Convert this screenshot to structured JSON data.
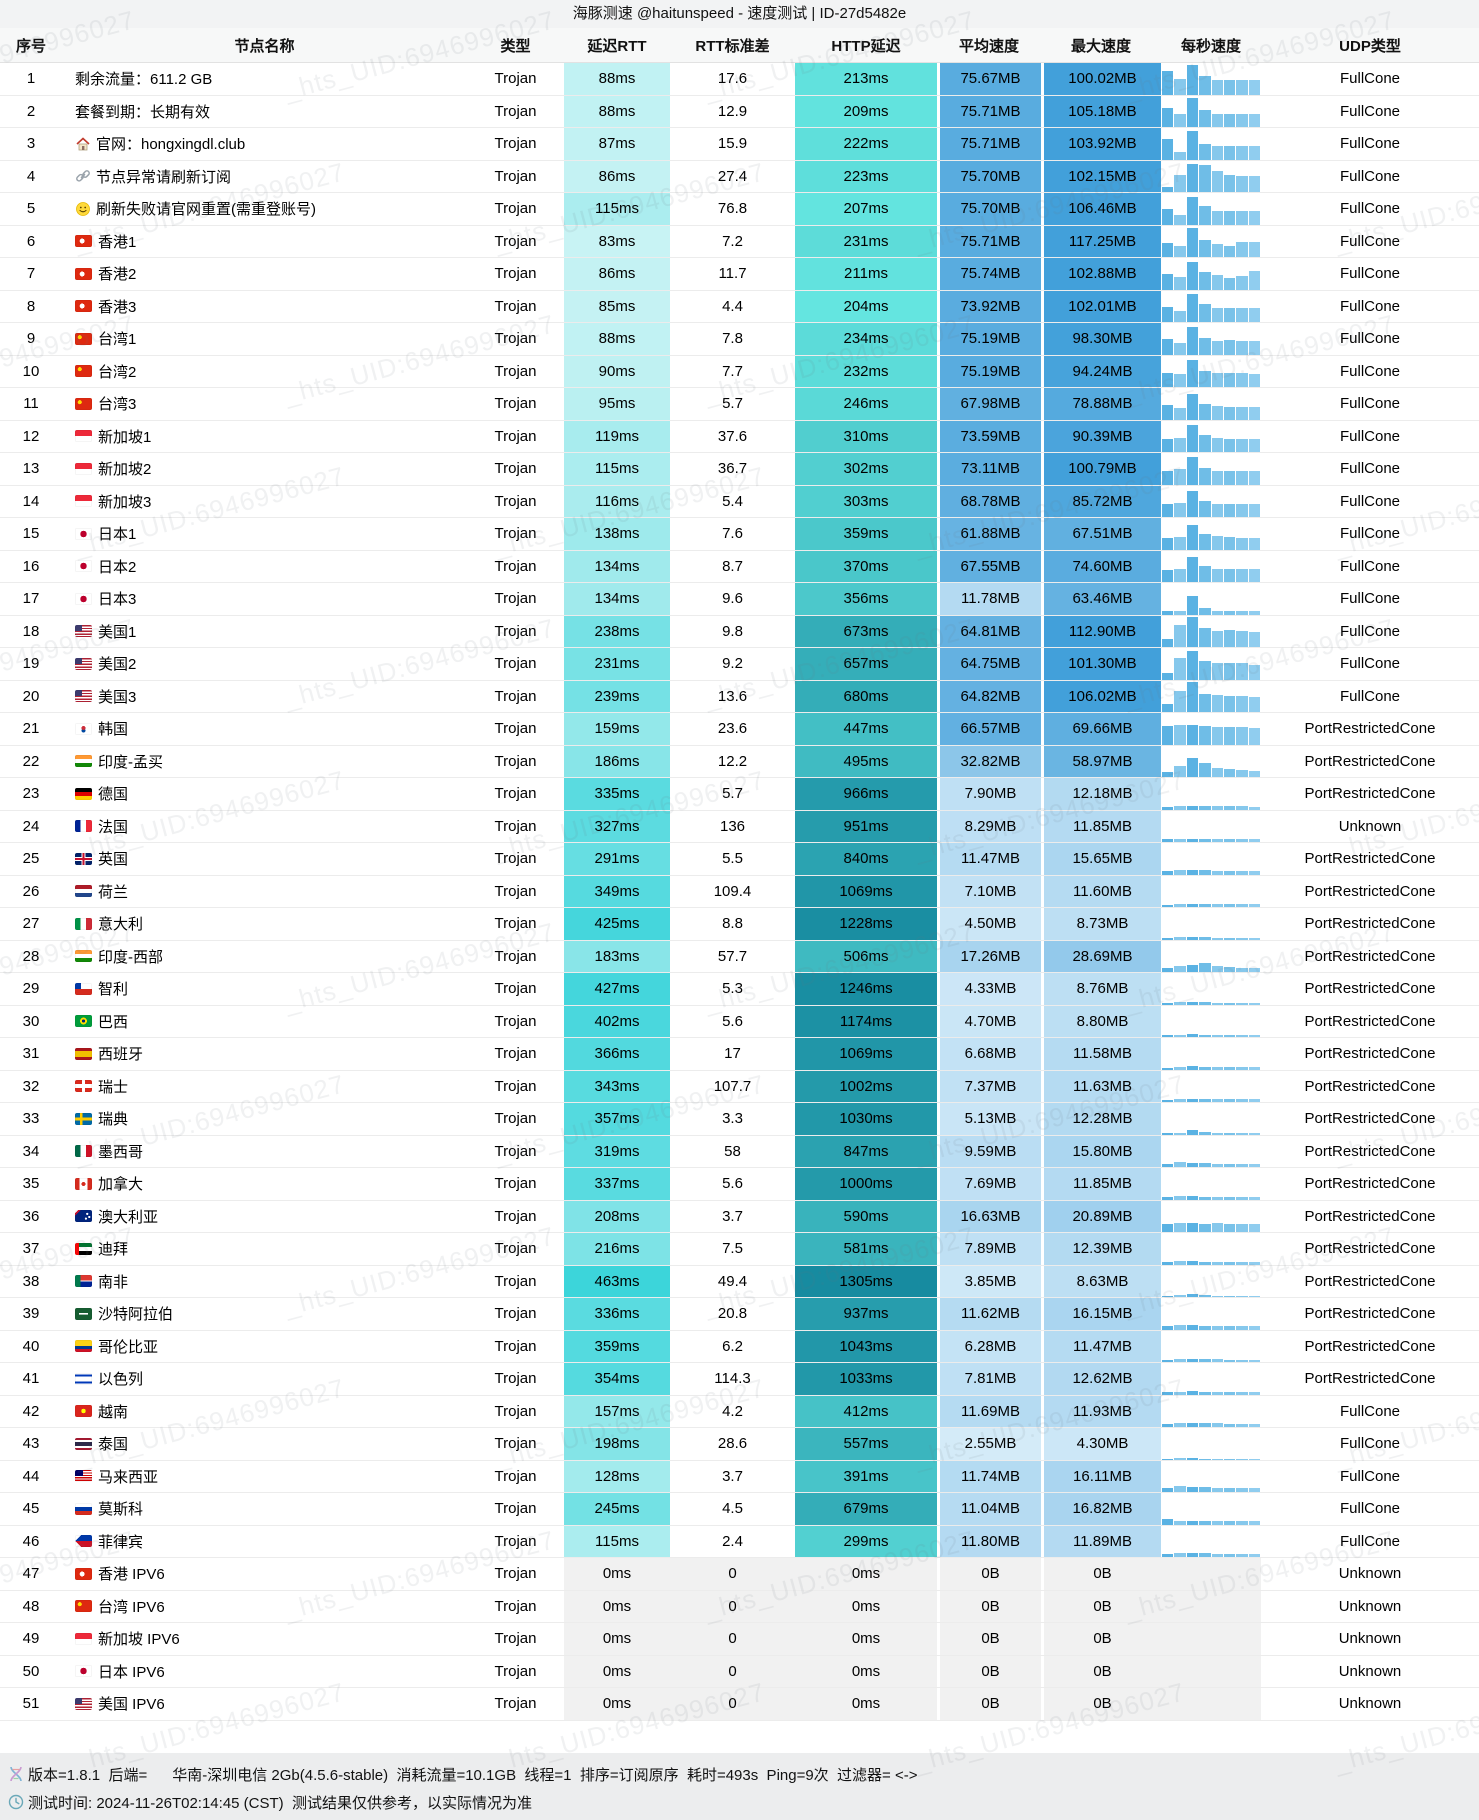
{
  "title": "海豚测速 @haitunspeed - 速度测试 | ID-27d5482e",
  "watermark_text": "_hts_UID:6946996027",
  "columns": [
    "序号",
    "节点名称",
    "类型",
    "延迟RTT",
    "RTT标准差",
    "HTTP延迟",
    "平均速度",
    "最大速度",
    "每秒速度",
    "UDP类型"
  ],
  "row_fields": [
    "no",
    "flag",
    "name",
    "type",
    "rtt",
    "rtt_std",
    "http",
    "avg_speed",
    "max_speed",
    "spark_percent",
    "udp_type"
  ],
  "rows": [
    [
      1,
      "none",
      "剩余流量：611.2 GB",
      "Trojan",
      "88ms",
      "17.6",
      "213ms",
      "75.67MB",
      "100.02MB",
      [
        75,
        50,
        95,
        60,
        45,
        45,
        47,
        47
      ],
      "FullCone"
    ],
    [
      2,
      "none",
      "套餐到期：长期有效",
      "Trojan",
      "88ms",
      "12.9",
      "209ms",
      "75.71MB",
      "105.18MB",
      [
        60,
        40,
        92,
        55,
        42,
        42,
        42,
        42
      ],
      "FullCone"
    ],
    [
      3,
      "house",
      "官网：hongxingdl.club",
      "Trojan",
      "87ms",
      "15.9",
      "222ms",
      "75.71MB",
      "103.92MB",
      [
        65,
        25,
        90,
        50,
        44,
        44,
        44,
        44
      ],
      "FullCone"
    ],
    [
      4,
      "link",
      "节点异常请刷新订阅",
      "Trojan",
      "86ms",
      "27.4",
      "223ms",
      "75.70MB",
      "102.15MB",
      [
        15,
        55,
        88,
        85,
        68,
        55,
        50,
        50
      ],
      "FullCone"
    ],
    [
      5,
      "smile",
      "刷新失败请官网重置(需重登账号)",
      "Trojan",
      "115ms",
      "76.8",
      "207ms",
      "75.70MB",
      "106.46MB",
      [
        50,
        30,
        88,
        58,
        44,
        44,
        44,
        44
      ],
      "FullCone"
    ],
    [
      6,
      "hk",
      "香港1",
      "Trojan",
      "83ms",
      "7.2",
      "231ms",
      "75.71MB",
      "117.25MB",
      [
        45,
        35,
        92,
        55,
        40,
        35,
        48,
        48
      ],
      "FullCone"
    ],
    [
      7,
      "hk",
      "香港2",
      "Trojan",
      "86ms",
      "11.7",
      "211ms",
      "75.74MB",
      "102.88MB",
      [
        50,
        40,
        88,
        55,
        45,
        38,
        42,
        58
      ],
      "FullCone"
    ],
    [
      8,
      "hk",
      "香港3",
      "Trojan",
      "85ms",
      "4.4",
      "204ms",
      "73.92MB",
      "102.01MB",
      [
        48,
        35,
        90,
        56,
        44,
        44,
        46,
        46
      ],
      "FullCone"
    ],
    [
      9,
      "cn",
      "台湾1",
      "Trojan",
      "88ms",
      "7.8",
      "234ms",
      "75.19MB",
      "98.30MB",
      [
        50,
        38,
        88,
        54,
        44,
        46,
        44,
        44
      ],
      "FullCone"
    ],
    [
      10,
      "cn",
      "台湾2",
      "Trojan",
      "90ms",
      "7.7",
      "232ms",
      "75.19MB",
      "94.24MB",
      [
        46,
        40,
        86,
        52,
        44,
        44,
        44,
        42
      ],
      "FullCone"
    ],
    [
      11,
      "cn",
      "台湾3",
      "Trojan",
      "95ms",
      "5.7",
      "246ms",
      "67.98MB",
      "78.88MB",
      [
        45,
        35,
        80,
        50,
        42,
        40,
        40,
        40
      ],
      "FullCone"
    ],
    [
      12,
      "sg",
      "新加坡1",
      "Trojan",
      "119ms",
      "37.6",
      "310ms",
      "73.59MB",
      "90.39MB",
      [
        40,
        45,
        85,
        55,
        45,
        42,
        42,
        42
      ],
      "FullCone"
    ],
    [
      13,
      "sg",
      "新加坡2",
      "Trojan",
      "115ms",
      "36.7",
      "302ms",
      "73.11MB",
      "100.79MB",
      [
        42,
        48,
        86,
        54,
        44,
        42,
        42,
        42
      ],
      "FullCone"
    ],
    [
      14,
      "sg",
      "新加坡3",
      "Trojan",
      "116ms",
      "5.4",
      "303ms",
      "68.78MB",
      "85.72MB",
      [
        40,
        44,
        82,
        52,
        42,
        40,
        40,
        40
      ],
      "FullCone"
    ],
    [
      15,
      "jp",
      "日本1",
      "Trojan",
      "138ms",
      "7.6",
      "359ms",
      "61.88MB",
      "67.51MB",
      [
        35,
        40,
        78,
        50,
        42,
        40,
        38,
        38
      ],
      "FullCone"
    ],
    [
      16,
      "jp",
      "日本2",
      "Trojan",
      "134ms",
      "8.7",
      "370ms",
      "67.55MB",
      "74.60MB",
      [
        38,
        42,
        80,
        52,
        42,
        40,
        40,
        40
      ],
      "FullCone"
    ],
    [
      17,
      "jp",
      "日本3",
      "Trojan",
      "134ms",
      "9.6",
      "356ms",
      "11.78MB",
      "63.46MB",
      [
        10,
        12,
        58,
        20,
        12,
        10,
        10,
        10
      ],
      "FullCone"
    ],
    [
      18,
      "us",
      "美国1",
      "Trojan",
      "238ms",
      "9.8",
      "673ms",
      "64.81MB",
      "112.90MB",
      [
        25,
        70,
        95,
        60,
        52,
        55,
        52,
        48
      ],
      "FullCone"
    ],
    [
      19,
      "us",
      "美国2",
      "Trojan",
      "231ms",
      "9.2",
      "657ms",
      "64.75MB",
      "101.30MB",
      [
        22,
        68,
        92,
        58,
        52,
        54,
        52,
        46
      ],
      "FullCone"
    ],
    [
      20,
      "us",
      "美国3",
      "Trojan",
      "239ms",
      "13.6",
      "680ms",
      "64.82MB",
      "106.02MB",
      [
        24,
        66,
        94,
        58,
        54,
        52,
        50,
        48
      ],
      "FullCone"
    ],
    [
      21,
      "kr",
      "韩国",
      "Trojan",
      "159ms",
      "23.6",
      "447ms",
      "66.57MB",
      "69.66MB",
      [
        58,
        62,
        62,
        58,
        56,
        55,
        55,
        54
      ],
      "PortRestrictedCone"
    ],
    [
      22,
      "in",
      "印度-孟买",
      "Trojan",
      "186ms",
      "12.2",
      "495ms",
      "32.82MB",
      "58.97MB",
      [
        15,
        35,
        60,
        45,
        30,
        25,
        22,
        20
      ],
      "PortRestrictedCone"
    ],
    [
      23,
      "de",
      "德国",
      "Trojan",
      "335ms",
      "5.7",
      "966ms",
      "7.90MB",
      "12.18MB",
      [
        8,
        10,
        12,
        11,
        10,
        10,
        10,
        9
      ],
      "PortRestrictedCone"
    ],
    [
      24,
      "fr",
      "法国",
      "Trojan",
      "327ms",
      "136",
      "951ms",
      "8.29MB",
      "11.85MB",
      [
        8,
        10,
        11,
        10,
        10,
        10,
        9,
        9
      ],
      "Unknown"
    ],
    [
      25,
      "gb",
      "英国",
      "Trojan",
      "291ms",
      "5.5",
      "840ms",
      "11.47MB",
      "15.65MB",
      [
        10,
        14,
        15,
        13,
        12,
        11,
        11,
        10
      ],
      "PortRestrictedCone"
    ],
    [
      26,
      "nl",
      "荷兰",
      "Trojan",
      "349ms",
      "109.4",
      "1069ms",
      "7.10MB",
      "11.60MB",
      [
        7,
        10,
        11,
        10,
        9,
        9,
        9,
        8
      ],
      "PortRestrictedCone"
    ],
    [
      27,
      "it",
      "意大利",
      "Trojan",
      "425ms",
      "8.8",
      "1228ms",
      "4.50MB",
      "8.73MB",
      [
        5,
        7,
        8,
        7,
        6,
        6,
        6,
        5
      ],
      "PortRestrictedCone"
    ],
    [
      28,
      "in",
      "印度-西部",
      "Trojan",
      "183ms",
      "57.7",
      "506ms",
      "17.26MB",
      "28.69MB",
      [
        12,
        18,
        22,
        28,
        20,
        16,
        14,
        12
      ],
      "PortRestrictedCone"
    ],
    [
      29,
      "cl",
      "智利",
      "Trojan",
      "427ms",
      "5.3",
      "1246ms",
      "4.33MB",
      "8.76MB",
      [
        5,
        7,
        8,
        7,
        6,
        6,
        5,
        5
      ],
      "PortRestrictedCone"
    ],
    [
      30,
      "br",
      "巴西",
      "Trojan",
      "402ms",
      "5.6",
      "1174ms",
      "4.70MB",
      "8.80MB",
      [
        5,
        7,
        8,
        7,
        6,
        6,
        6,
        5
      ],
      "PortRestrictedCone"
    ],
    [
      31,
      "es",
      "西班牙",
      "Trojan",
      "366ms",
      "17",
      "1069ms",
      "6.68MB",
      "11.58MB",
      [
        6,
        9,
        10,
        9,
        8,
        8,
        8,
        7
      ],
      "PortRestrictedCone"
    ],
    [
      32,
      "ch",
      "瑞士",
      "Trojan",
      "343ms",
      "107.7",
      "1002ms",
      "7.37MB",
      "11.63MB",
      [
        7,
        9,
        10,
        9,
        9,
        8,
        8,
        8
      ],
      "PortRestrictedCone"
    ],
    [
      33,
      "se",
      "瑞典",
      "Trojan",
      "357ms",
      "3.3",
      "1030ms",
      "5.13MB",
      "12.28MB",
      [
        4,
        6,
        13,
        8,
        6,
        5,
        5,
        5
      ],
      "PortRestrictedCone"
    ],
    [
      34,
      "mx",
      "墨西哥",
      "Trojan",
      "319ms",
      "58",
      "847ms",
      "9.59MB",
      "15.80MB",
      [
        10,
        15,
        13,
        12,
        11,
        11,
        10,
        10
      ],
      "PortRestrictedCone"
    ],
    [
      35,
      "ca",
      "加拿大",
      "Trojan",
      "337ms",
      "5.6",
      "1000ms",
      "7.69MB",
      "11.85MB",
      [
        7,
        10,
        10,
        9,
        9,
        9,
        8,
        8
      ],
      "PortRestrictedCone"
    ],
    [
      36,
      "au",
      "澳大利亚",
      "Trojan",
      "208ms",
      "3.7",
      "590ms",
      "16.63MB",
      "20.89MB",
      [
        26,
        30,
        28,
        27,
        28,
        27,
        26,
        25
      ],
      "PortRestrictedCone"
    ],
    [
      37,
      "ae",
      "迪拜",
      "Trojan",
      "216ms",
      "7.5",
      "581ms",
      "7.89MB",
      "12.39MB",
      [
        8,
        11,
        10,
        9,
        9,
        9,
        8,
        8
      ],
      "PortRestrictedCone"
    ],
    [
      38,
      "za",
      "南非",
      "Trojan",
      "463ms",
      "49.4",
      "1305ms",
      "3.85MB",
      "8.63MB",
      [
        3,
        6,
        8,
        6,
        4,
        4,
        4,
        3
      ],
      "PortRestrictedCone"
    ],
    [
      39,
      "sa",
      "沙特阿拉伯",
      "Trojan",
      "336ms",
      "20.8",
      "937ms",
      "11.62MB",
      "16.15MB",
      [
        10,
        13,
        14,
        12,
        12,
        11,
        11,
        10
      ],
      "PortRestrictedCone"
    ],
    [
      40,
      "co",
      "哥伦比亚",
      "Trojan",
      "359ms",
      "6.2",
      "1043ms",
      "6.28MB",
      "11.47MB",
      [
        6,
        9,
        10,
        8,
        8,
        7,
        7,
        7
      ],
      "PortRestrictedCone"
    ],
    [
      41,
      "il",
      "以色列",
      "Trojan",
      "354ms",
      "114.3",
      "1033ms",
      "7.81MB",
      "12.62MB",
      [
        7,
        9,
        11,
        9,
        9,
        8,
        8,
        8
      ],
      "PortRestrictedCone"
    ],
    [
      42,
      "vn",
      "越南",
      "Trojan",
      "157ms",
      "4.2",
      "412ms",
      "11.69MB",
      "11.93MB",
      [
        11,
        12,
        12,
        12,
        12,
        11,
        11,
        11
      ],
      "FullCone"
    ],
    [
      43,
      "th",
      "泰国",
      "Trojan",
      "198ms",
      "28.6",
      "557ms",
      "2.55MB",
      "4.30MB",
      [
        2,
        4,
        4,
        3,
        3,
        3,
        3,
        3
      ],
      "FullCone"
    ],
    [
      44,
      "my",
      "马来西亚",
      "Trojan",
      "128ms",
      "3.7",
      "391ms",
      "11.74MB",
      "16.11MB",
      [
        14,
        20,
        17,
        15,
        14,
        13,
        13,
        12
      ],
      "FullCone"
    ],
    [
      45,
      "ru",
      "莫斯科",
      "Trojan",
      "245ms",
      "4.5",
      "679ms",
      "11.04MB",
      "16.82MB",
      [
        16,
        11,
        10,
        10,
        10,
        10,
        10,
        10
      ],
      "FullCone"
    ],
    [
      46,
      "ph",
      "菲律宾",
      "Trojan",
      "115ms",
      "2.4",
      "299ms",
      "11.80MB",
      "11.89MB",
      [
        11,
        12,
        12,
        12,
        11,
        11,
        11,
        11
      ],
      "FullCone"
    ],
    [
      47,
      "hk",
      "香港 IPV6",
      "Trojan",
      "0ms",
      "0",
      "0ms",
      "0B",
      "0B",
      [],
      "Unknown"
    ],
    [
      48,
      "cn",
      "台湾 IPV6",
      "Trojan",
      "0ms",
      "0",
      "0ms",
      "0B",
      "0B",
      [],
      "Unknown"
    ],
    [
      49,
      "sg",
      "新加坡 IPV6",
      "Trojan",
      "0ms",
      "0",
      "0ms",
      "0B",
      "0B",
      [],
      "Unknown"
    ],
    [
      50,
      "jp",
      "日本 IPV6",
      "Trojan",
      "0ms",
      "0",
      "0ms",
      "0B",
      "0B",
      [],
      "Unknown"
    ],
    [
      51,
      "us",
      "美国 IPV6",
      "Trojan",
      "0ms",
      "0",
      "0ms",
      "0B",
      "0B",
      [],
      "Unknown"
    ]
  ],
  "footer": {
    "line1": "版本=1.8.1  后端=      华南-深圳电信 2Gb(4.5.6-stable)  消耗流量=10.1GB  线程=1  排序=订阅原序  耗时=493s  Ping=9次  过滤器= <->",
    "line2": "测试时间: 2024-11-26T02:14:45 (CST)  测试结果仅供参考，以实际情况为准"
  },
  "colors": {
    "rtt_scale_start": "#dff8f8",
    "rtt_scale_end": "#3ad4da",
    "http_scale_start": "#6ceee6",
    "http_scale_end": "#178ba0",
    "speed_scale_start": "#f0f9fe",
    "speed_scale_end": "#42a0da",
    "spark_bar": "#5ab2e3",
    "spark_bar_light": "#86c8ec",
    "zero_cell": "#f1f1f1"
  }
}
